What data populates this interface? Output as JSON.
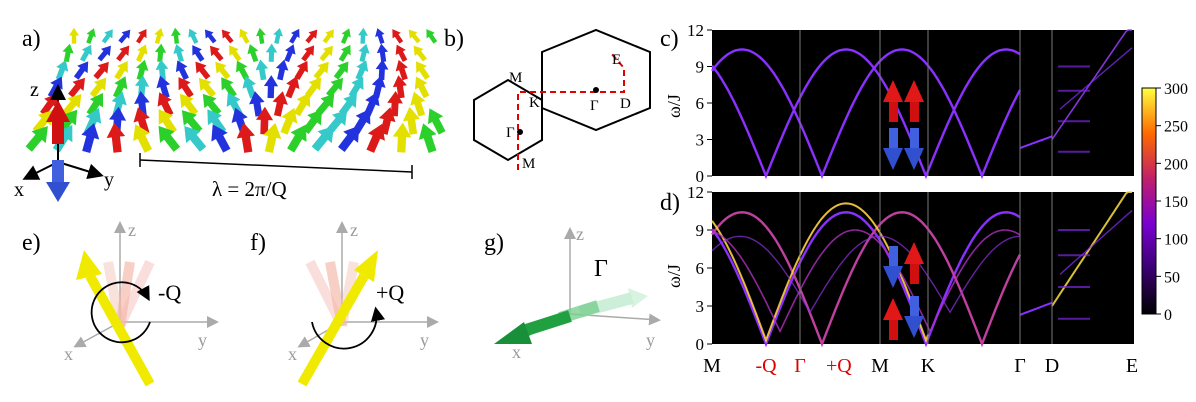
{
  "panel_labels": {
    "a": "a)",
    "b": "b)",
    "c": "c)",
    "d": "d)",
    "e": "e)",
    "f": "f)",
    "g": "g)"
  },
  "panel_a": {
    "axis_z": "z",
    "axis_x": "x",
    "axis_y": "y",
    "wavelength_label": "λ = 2π/Q",
    "arrow_palette": [
      "#e3e000",
      "#2bd02b",
      "#35c9c9",
      "#2233dd",
      "#dd1a1a"
    ]
  },
  "panel_b": {
    "points": {
      "M_top": "M",
      "M_bottom": "M",
      "K": "K",
      "Gamma_left": "Γ",
      "Gamma_right": "Γ",
      "E": "E",
      "D": "D"
    }
  },
  "spectra": {
    "ylabel": "ω/J",
    "yticks": [
      "0",
      "3",
      "6",
      "9",
      "12"
    ],
    "xticks": [
      {
        "label": "M",
        "color": "#000000"
      },
      {
        "label": "-Q",
        "color": "#e00000"
      },
      {
        "label": "Γ",
        "color": "#e00000"
      },
      {
        "label": "+Q",
        "color": "#e00000"
      },
      {
        "label": "M",
        "color": "#000000"
      },
      {
        "label": "K",
        "color": "#000000"
      },
      {
        "label": "Γ",
        "color": "#000000"
      },
      {
        "label": "D",
        "color": "#000000"
      },
      {
        "label": "E",
        "color": "#000000"
      }
    ],
    "colorbar": {
      "ticks": [
        "0",
        "50",
        "100",
        "150",
        "200",
        "250",
        "300"
      ],
      "range": [
        0,
        300
      ]
    }
  },
  "panel_e": {
    "axis_x": "x",
    "axis_y": "y",
    "axis_z": "z",
    "label": "-Q"
  },
  "panel_f": {
    "axis_x": "x",
    "axis_y": "y",
    "axis_z": "z",
    "label": "+Q"
  },
  "panel_g": {
    "axis_x": "x",
    "axis_y": "y",
    "axis_z": "z",
    "label": "Γ"
  }
}
